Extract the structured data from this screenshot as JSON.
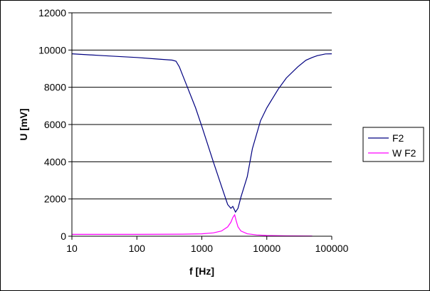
{
  "chart_data": {
    "type": "line",
    "title": "",
    "xlabel": "f [Hz]",
    "ylabel": "U [mV]",
    "xscale": "log",
    "xlim": [
      10,
      100000
    ],
    "ylim": [
      0,
      12000
    ],
    "x_ticks": [
      "10",
      "100",
      "1000",
      "10000",
      "100000"
    ],
    "y_ticks": [
      "0",
      "2000",
      "4000",
      "6000",
      "8000",
      "10000",
      "12000"
    ],
    "grid": "horizontal major gridlines",
    "legend_position": "right",
    "series": [
      {
        "name": "F2",
        "color": "#000080",
        "x": [
          10,
          30,
          100,
          200,
          350,
          400,
          450,
          500,
          600,
          800,
          1000,
          1500,
          2000,
          2500,
          2800,
          3000,
          3300,
          3600,
          4000,
          5000,
          6000,
          8000,
          10000,
          15000,
          20000,
          30000,
          40000,
          50000,
          60000,
          70000,
          80000,
          100000
        ],
        "y": [
          9800,
          9700,
          9600,
          9520,
          9460,
          9400,
          9100,
          8700,
          8000,
          6900,
          5900,
          4000,
          2700,
          1700,
          1500,
          1600,
          1300,
          1500,
          2100,
          3200,
          4700,
          6200,
          6900,
          7900,
          8500,
          9100,
          9450,
          9600,
          9700,
          9750,
          9790,
          9800
        ]
      },
      {
        "name": "W F2",
        "color": "#ff00ff",
        "x": [
          10,
          100,
          500,
          1000,
          1500,
          2000,
          2500,
          2800,
          3000,
          3200,
          3400,
          3600,
          4000,
          5000,
          7000,
          10000,
          20000,
          50000
        ],
        "y": [
          100,
          100,
          110,
          130,
          180,
          280,
          500,
          750,
          1000,
          1150,
          800,
          500,
          280,
          130,
          70,
          40,
          20,
          10
        ]
      }
    ]
  }
}
